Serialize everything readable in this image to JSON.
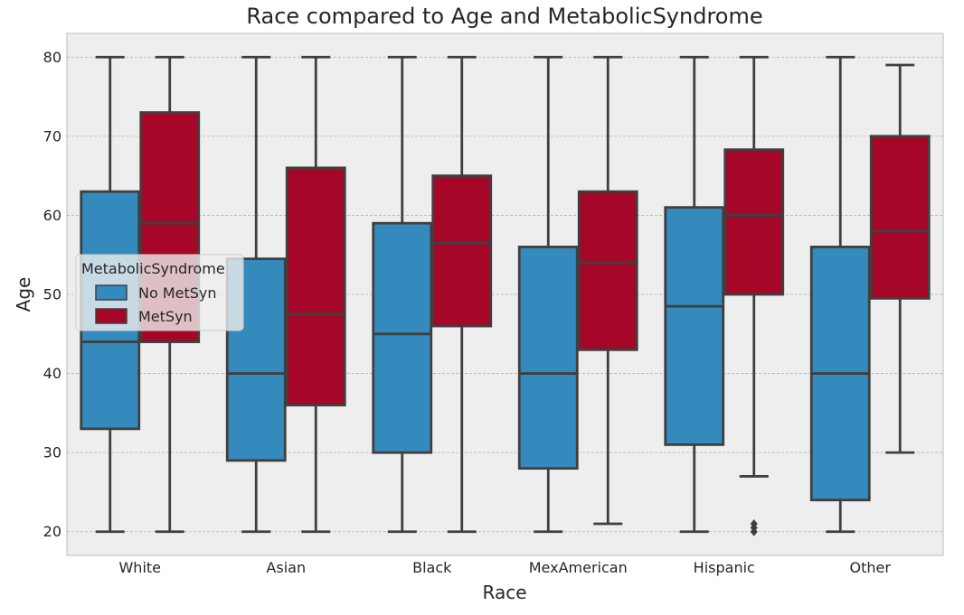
{
  "chart_data": {
    "type": "box",
    "title": "Race compared to Age and MetabolicSyndrome",
    "xlabel": "Race",
    "ylabel": "Age",
    "ylim": [
      17,
      83
    ],
    "yticks": [
      20,
      30,
      40,
      50,
      60,
      70,
      80
    ],
    "grid": true,
    "categories": [
      "White",
      "Asian",
      "Black",
      "MexAmerican",
      "Hispanic",
      "Other"
    ],
    "legend": {
      "title": "MetabolicSyndrome",
      "placement": "center-left"
    },
    "series": [
      {
        "name": "No MetSyn",
        "color": "#348abd",
        "boxes": [
          {
            "whislo": 20,
            "q1": 33,
            "med": 44,
            "q3": 63,
            "whishi": 80,
            "fliers": []
          },
          {
            "whislo": 20,
            "q1": 29,
            "med": 40,
            "q3": 54.5,
            "whishi": 80,
            "fliers": []
          },
          {
            "whislo": 20,
            "q1": 30,
            "med": 45,
            "q3": 59,
            "whishi": 80,
            "fliers": []
          },
          {
            "whislo": 20,
            "q1": 28,
            "med": 40,
            "q3": 56,
            "whishi": 80,
            "fliers": []
          },
          {
            "whislo": 20,
            "q1": 31,
            "med": 48.5,
            "q3": 61,
            "whishi": 80,
            "fliers": []
          },
          {
            "whislo": 20,
            "q1": 24,
            "med": 40,
            "q3": 56,
            "whishi": 80,
            "fliers": []
          }
        ]
      },
      {
        "name": "MetSyn",
        "color": "#a60628",
        "boxes": [
          {
            "whislo": 20,
            "q1": 44,
            "med": 59,
            "q3": 73,
            "whishi": 80,
            "fliers": []
          },
          {
            "whislo": 20,
            "q1": 36,
            "med": 47.5,
            "q3": 66,
            "whishi": 80,
            "fliers": []
          },
          {
            "whislo": 20,
            "q1": 46,
            "med": 56.5,
            "q3": 65,
            "whishi": 80,
            "fliers": []
          },
          {
            "whislo": 21,
            "q1": 43,
            "med": 54,
            "q3": 63,
            "whishi": 80,
            "fliers": []
          },
          {
            "whislo": 27,
            "q1": 50,
            "med": 60,
            "q3": 68.3,
            "whishi": 80,
            "fliers": [
              21,
              20.5,
              20
            ]
          },
          {
            "whislo": 30,
            "q1": 49.5,
            "med": 58,
            "q3": 70,
            "whishi": 79,
            "fliers": []
          }
        ]
      }
    ]
  }
}
